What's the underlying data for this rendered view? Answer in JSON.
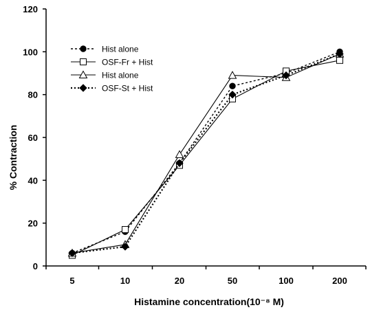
{
  "chart_data": {
    "type": "line",
    "title": "",
    "xlabel": "Histamine concentration(10⁻⁸ M)",
    "ylabel": "% Contraction",
    "categories": [
      "5",
      "10",
      "20",
      "50",
      "100",
      "200"
    ],
    "ylim": [
      0,
      120
    ],
    "yticks": [
      "0",
      "20",
      "40",
      "60",
      "80",
      "100",
      "120"
    ],
    "grid": false,
    "legend_position": "top-left",
    "series": [
      {
        "name": "Hist alone",
        "values": [
          6,
          16,
          48,
          84,
          90,
          100
        ],
        "marker": "circle-filled",
        "line": "dashed"
      },
      {
        "name": "OSF-Fr + Hist",
        "values": [
          5,
          17,
          47,
          78,
          91,
          96
        ],
        "marker": "square-open",
        "line": "solid"
      },
      {
        "name": "Hist alone",
        "values": [
          6,
          10,
          52,
          89,
          88,
          99
        ],
        "marker": "triangle-open",
        "line": "solid"
      },
      {
        "name": "OSF-St + Hist",
        "values": [
          6,
          9,
          48,
          80,
          89,
          99
        ],
        "marker": "diamond-filled",
        "line": "dotted"
      }
    ]
  }
}
